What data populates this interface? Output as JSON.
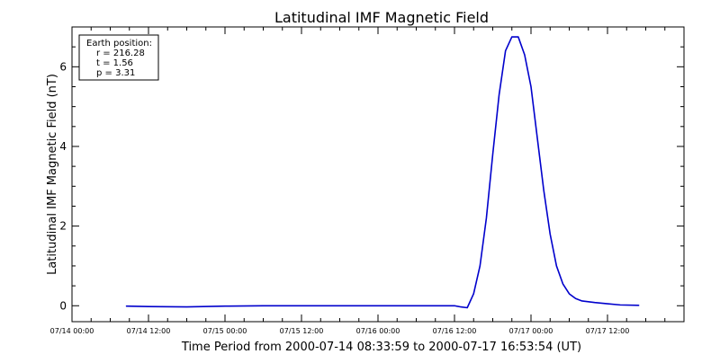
{
  "chart_data": {
    "type": "line",
    "title": "Latitudinal IMF Magnetic Field",
    "xlabel": "Time Period from 2000-07-14 08:33:59 to 2000-07-17 16:53:54 (UT)",
    "ylabel": "Latitudinal IMF Magnetic Field (nT)",
    "xlim": [
      "2000-07-14 00:00",
      "2000-07-18 00:00"
    ],
    "ylim": [
      -0.4,
      7.0
    ],
    "x_ticks": [
      {
        "t": "2000-07-14 00:00",
        "label": "07/14 00:00"
      },
      {
        "t": "2000-07-14 12:00",
        "label": "07/14 12:00"
      },
      {
        "t": "2000-07-15 00:00",
        "label": "07/15 00:00"
      },
      {
        "t": "2000-07-15 12:00",
        "label": "07/15 12:00"
      },
      {
        "t": "2000-07-16 00:00",
        "label": "07/16 00:00"
      },
      {
        "t": "2000-07-16 12:00",
        "label": "07/16 12:00"
      },
      {
        "t": "2000-07-17 00:00",
        "label": "07/17 00:00"
      },
      {
        "t": "2000-07-17 12:00",
        "label": "07/17 12:00"
      }
    ],
    "y_ticks": [
      {
        "value": 0,
        "label": "0"
      },
      {
        "value": 2,
        "label": "2"
      },
      {
        "value": 4,
        "label": "4"
      },
      {
        "value": 6,
        "label": "6"
      }
    ],
    "y_minor_ticks": [
      0.5,
      1,
      1.5,
      2.5,
      3,
      3.5,
      4.5,
      5,
      5.5,
      6.5
    ],
    "legend": {
      "placement": "top-left",
      "lines": [
        "Earth position:",
        "r = 216.28",
        "t = 1.56",
        "p = 3.31"
      ]
    },
    "series": [
      {
        "color": "#0000cc",
        "points": [
          [
            "2000-07-14 08:33",
            -0.01
          ],
          [
            "2000-07-14 12:00",
            -0.02
          ],
          [
            "2000-07-14 18:00",
            -0.03
          ],
          [
            "2000-07-15 00:00",
            -0.01
          ],
          [
            "2000-07-15 06:00",
            0.0
          ],
          [
            "2000-07-15 12:00",
            0.0
          ],
          [
            "2000-07-15 18:00",
            0.0
          ],
          [
            "2000-07-16 00:00",
            0.0
          ],
          [
            "2000-07-16 06:00",
            0.0
          ],
          [
            "2000-07-16 12:00",
            0.0
          ],
          [
            "2000-07-16 13:00",
            -0.03
          ],
          [
            "2000-07-16 14:00",
            -0.05
          ],
          [
            "2000-07-16 15:00",
            0.3
          ],
          [
            "2000-07-16 16:00",
            1.0
          ],
          [
            "2000-07-16 17:00",
            2.2
          ],
          [
            "2000-07-16 18:00",
            3.8
          ],
          [
            "2000-07-16 19:00",
            5.3
          ],
          [
            "2000-07-16 20:00",
            6.4
          ],
          [
            "2000-07-16 21:00",
            6.75
          ],
          [
            "2000-07-16 22:00",
            6.75
          ],
          [
            "2000-07-16 23:00",
            6.3
          ],
          [
            "2000-07-17 00:00",
            5.5
          ],
          [
            "2000-07-17 01:00",
            4.2
          ],
          [
            "2000-07-17 02:00",
            2.9
          ],
          [
            "2000-07-17 03:00",
            1.8
          ],
          [
            "2000-07-17 04:00",
            1.0
          ],
          [
            "2000-07-17 05:00",
            0.55
          ],
          [
            "2000-07-17 06:00",
            0.3
          ],
          [
            "2000-07-17 07:00",
            0.18
          ],
          [
            "2000-07-17 08:00",
            0.12
          ],
          [
            "2000-07-17 10:00",
            0.08
          ],
          [
            "2000-07-17 12:00",
            0.05
          ],
          [
            "2000-07-17 14:00",
            0.02
          ],
          [
            "2000-07-17 16:53",
            0.01
          ]
        ]
      }
    ]
  }
}
